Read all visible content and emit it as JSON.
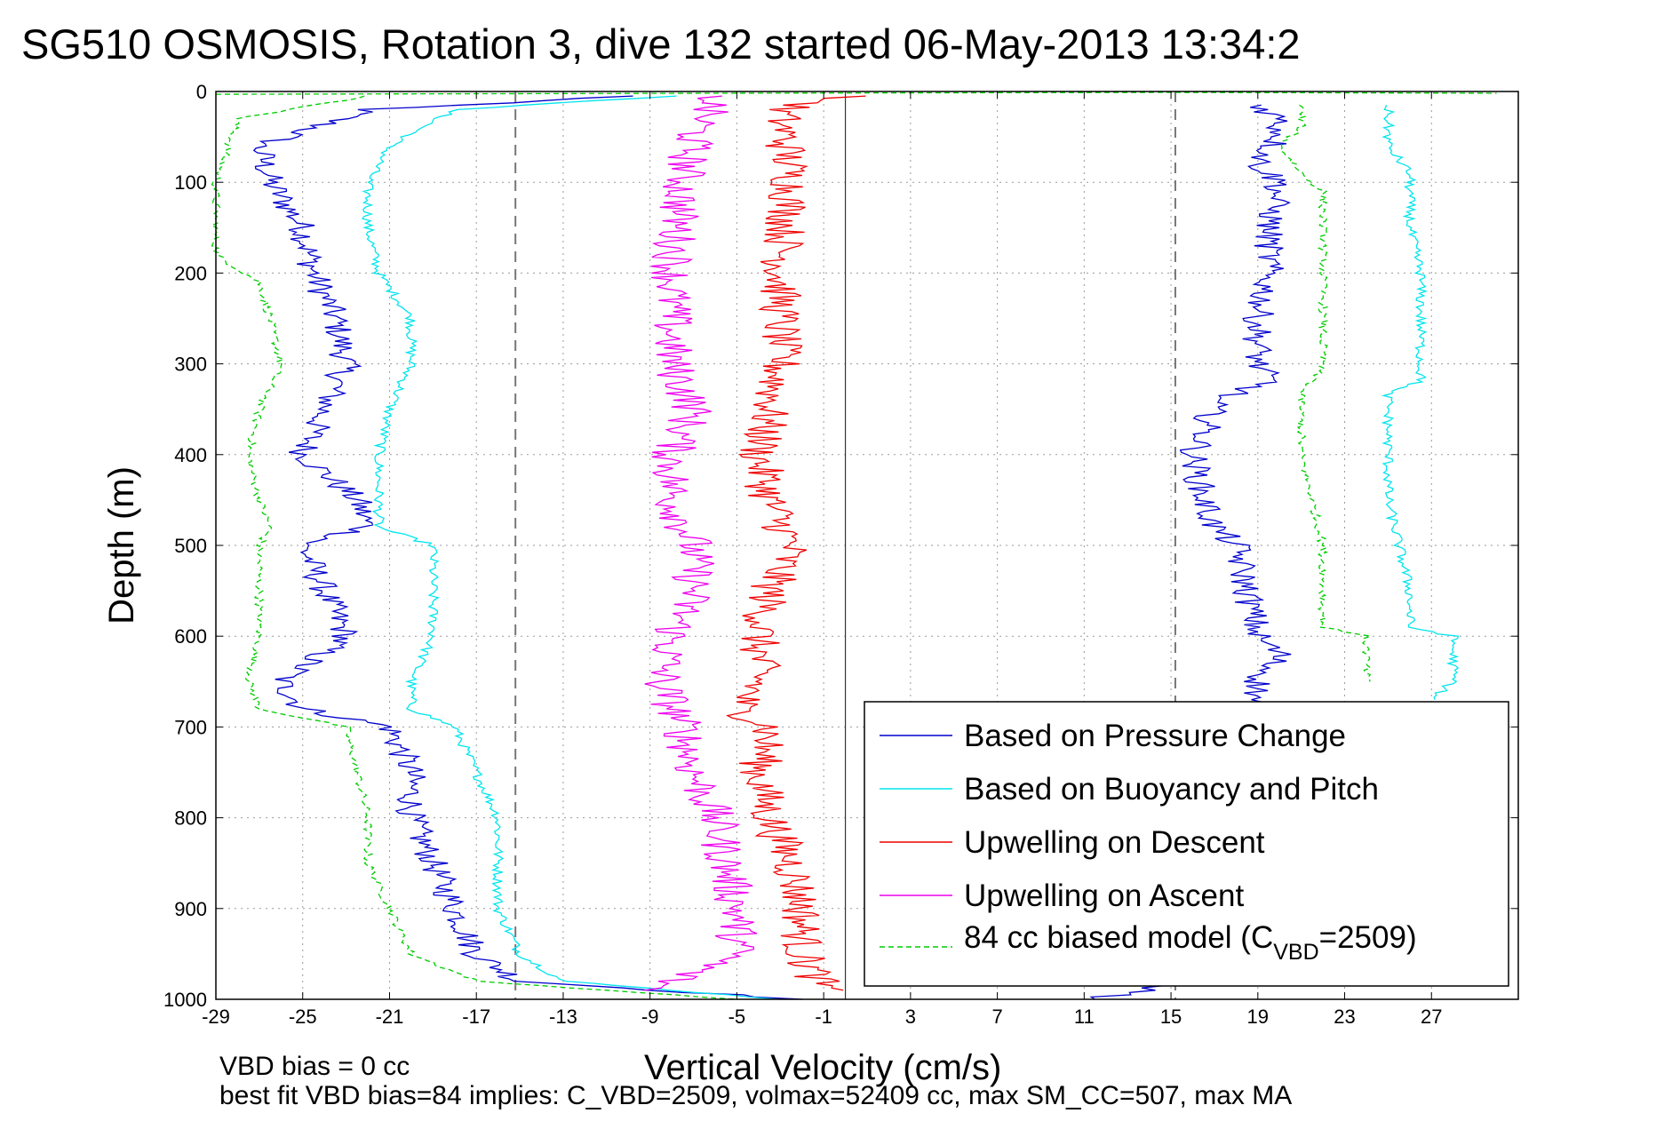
{
  "chart_data": {
    "type": "line",
    "title": "SG510 OSMOSIS, Rotation 3, dive 132 started 06-May-2013 13:34:2",
    "xlabel": "Vertical Velocity (cm/s)",
    "ylabel": "Depth (m)",
    "xlim": [
      -29,
      31
    ],
    "ylim": [
      1000,
      0
    ],
    "y_reversed": true,
    "grid": true,
    "x_ticks": [
      "-29",
      "-25",
      "-21",
      "-17",
      "-13",
      "-9",
      "-5",
      "-1",
      "3",
      "7",
      "11",
      "15",
      "19",
      "23",
      "27"
    ],
    "y_ticks": [
      "0",
      "100",
      "200",
      "300",
      "400",
      "500",
      "600",
      "700",
      "800",
      "900",
      "1000"
    ],
    "reference_lines": [
      {
        "style": "dashed",
        "x": -15.2
      },
      {
        "style": "solid",
        "x": 0
      },
      {
        "style": "dashed",
        "x": 15.2
      }
    ],
    "legend_position": "lower-right",
    "legend": [
      {
        "label": "Based on Pressure Change",
        "color": "#0000cc",
        "dash": "solid"
      },
      {
        "label": "Based on Buoyancy and Pitch",
        "color": "#00e5ee",
        "dash": "solid"
      },
      {
        "label": "Upwelling on Descent",
        "color": "#ee0000",
        "dash": "solid"
      },
      {
        "label": "Upwelling on Ascent",
        "color": "#ee00ee",
        "dash": "solid"
      },
      {
        "label_main": "84 cc biased model (C",
        "label_sub": "VBD",
        "label_end": "=2509)",
        "color": "#00cc00",
        "dash": "dashed"
      }
    ],
    "series": [
      {
        "key": "pressure-descent",
        "color": "#0000cc",
        "dash": "solid",
        "noise": 0.7,
        "points": [
          [
            -10,
            5
          ],
          [
            -22,
            20
          ],
          [
            -27,
            60
          ],
          [
            -26.5,
            100
          ],
          [
            -25,
            150
          ],
          [
            -24.5,
            200
          ],
          [
            -23.5,
            250
          ],
          [
            -23,
            300
          ],
          [
            -24,
            350
          ],
          [
            -25,
            400
          ],
          [
            -22.5,
            450
          ],
          [
            -22,
            480
          ],
          [
            -25,
            500
          ],
          [
            -24,
            550
          ],
          [
            -23,
            600
          ],
          [
            -26,
            650
          ],
          [
            -25,
            680
          ],
          [
            -21,
            700
          ],
          [
            -20,
            750
          ],
          [
            -20,
            800
          ],
          [
            -19,
            850
          ],
          [
            -18,
            900
          ],
          [
            -17,
            950
          ],
          [
            -15,
            980
          ],
          [
            -2,
            1000
          ]
        ]
      },
      {
        "key": "buoyancy-descent",
        "color": "#00e5ee",
        "dash": "solid",
        "noise": 0.25,
        "points": [
          [
            -8,
            5
          ],
          [
            -18,
            20
          ],
          [
            -21,
            60
          ],
          [
            -22,
            100
          ],
          [
            -22,
            150
          ],
          [
            -21.5,
            200
          ],
          [
            -20,
            250
          ],
          [
            -20,
            300
          ],
          [
            -21,
            350
          ],
          [
            -21.5,
            400
          ],
          [
            -21.5,
            480
          ],
          [
            -19,
            500
          ],
          [
            -19,
            550
          ],
          [
            -19,
            600
          ],
          [
            -20,
            650
          ],
          [
            -20,
            680
          ],
          [
            -18,
            700
          ],
          [
            -17,
            750
          ],
          [
            -16,
            800
          ],
          [
            -16,
            850
          ],
          [
            -16,
            900
          ],
          [
            -15,
            950
          ],
          [
            -13,
            980
          ],
          [
            -3,
            1000
          ]
        ]
      },
      {
        "key": "model-descent",
        "color": "#00cc00",
        "dash": "dashed",
        "noise": 0.2,
        "points": [
          [
            -22,
            5
          ],
          [
            -28,
            30
          ],
          [
            -29,
            100
          ],
          [
            -29,
            180
          ],
          [
            -27,
            210
          ],
          [
            -26.5,
            250
          ],
          [
            -26,
            300
          ],
          [
            -27,
            350
          ],
          [
            -27.5,
            400
          ],
          [
            -27,
            450
          ],
          [
            -26.5,
            480
          ],
          [
            -27,
            500
          ],
          [
            -27,
            550
          ],
          [
            -27,
            600
          ],
          [
            -27.5,
            650
          ],
          [
            -27,
            680
          ],
          [
            -23,
            700
          ],
          [
            -22.5,
            750
          ],
          [
            -22,
            800
          ],
          [
            -22,
            850
          ],
          [
            -21,
            900
          ],
          [
            -20,
            950
          ],
          [
            -17,
            980
          ],
          [
            -5,
            1000
          ]
        ]
      },
      {
        "key": "upwelling-descent",
        "color": "#ee0000",
        "dash": "solid",
        "noise": 1.0,
        "points": [
          [
            0,
            5
          ],
          [
            -3,
            20
          ],
          [
            -2.5,
            100
          ],
          [
            -3,
            200
          ],
          [
            -3,
            300
          ],
          [
            -3.5,
            350
          ],
          [
            -4,
            400
          ],
          [
            -3.5,
            450
          ],
          [
            -2.5,
            500
          ],
          [
            -3.5,
            550
          ],
          [
            -4,
            600
          ],
          [
            -4,
            650
          ],
          [
            -5,
            680
          ],
          [
            -3.5,
            700
          ],
          [
            -4,
            750
          ],
          [
            -3.5,
            800
          ],
          [
            -2.5,
            850
          ],
          [
            -2,
            900
          ],
          [
            -2,
            950
          ],
          [
            -1,
            990
          ]
        ]
      },
      {
        "key": "upwelling-ascent",
        "color": "#ee00ee",
        "dash": "solid",
        "noise": 1.0,
        "points": [
          [
            -6,
            5
          ],
          [
            -7,
            50
          ],
          [
            -7.5,
            100
          ],
          [
            -8,
            200
          ],
          [
            -8,
            300
          ],
          [
            -7,
            350
          ],
          [
            -8,
            400
          ],
          [
            -8,
            450
          ],
          [
            -7,
            500
          ],
          [
            -7,
            550
          ],
          [
            -8,
            600
          ],
          [
            -8.5,
            650
          ],
          [
            -7.5,
            700
          ],
          [
            -7,
            750
          ],
          [
            -6,
            800
          ],
          [
            -5.5,
            850
          ],
          [
            -5,
            900
          ],
          [
            -5,
            950
          ],
          [
            -7,
            970
          ],
          [
            -9,
            990
          ]
        ]
      },
      {
        "key": "pressure-ascent",
        "color": "#0000cc",
        "dash": "solid",
        "noise": 0.7,
        "points": [
          [
            19,
            15
          ],
          [
            20,
            30
          ],
          [
            20,
            50
          ],
          [
            19,
            80
          ],
          [
            20,
            100
          ],
          [
            19.5,
            150
          ],
          [
            19.5,
            200
          ],
          [
            19,
            250
          ],
          [
            19,
            300
          ],
          [
            19.5,
            320
          ],
          [
            17,
            340
          ],
          [
            16.5,
            380
          ],
          [
            16,
            400
          ],
          [
            16.5,
            450
          ],
          [
            17,
            480
          ],
          [
            18,
            500
          ],
          [
            18.5,
            550
          ],
          [
            19,
            600
          ],
          [
            20,
            620
          ],
          [
            19,
            650
          ],
          [
            19,
            660
          ],
          [
            14,
            990
          ],
          [
            11,
            1000
          ]
        ]
      },
      {
        "key": "buoyancy-ascent",
        "color": "#00e5ee",
        "dash": "solid",
        "noise": 0.25,
        "points": [
          [
            25,
            15
          ],
          [
            25,
            40
          ],
          [
            25,
            60
          ],
          [
            26,
            90
          ],
          [
            26,
            110
          ],
          [
            26,
            150
          ],
          [
            26.5,
            200
          ],
          [
            26.5,
            250
          ],
          [
            26.5,
            300
          ],
          [
            26.5,
            320
          ],
          [
            25,
            330
          ],
          [
            25,
            400
          ],
          [
            25,
            450
          ],
          [
            25.5,
            500
          ],
          [
            26,
            550
          ],
          [
            26,
            590
          ],
          [
            28,
            600
          ],
          [
            28,
            650
          ],
          [
            27,
            670
          ]
        ]
      },
      {
        "key": "model-ascent",
        "color": "#00cc00",
        "dash": "dashed",
        "noise": 0.2,
        "points": [
          [
            21,
            15
          ],
          [
            21,
            40
          ],
          [
            20,
            60
          ],
          [
            21,
            90
          ],
          [
            22,
            110
          ],
          [
            22,
            200
          ],
          [
            22,
            250
          ],
          [
            22,
            300
          ],
          [
            21.5,
            320
          ],
          [
            21,
            330
          ],
          [
            21,
            400
          ],
          [
            21.5,
            450
          ],
          [
            22,
            500
          ],
          [
            22,
            590
          ],
          [
            24,
            600
          ],
          [
            24,
            650
          ]
        ]
      },
      {
        "key": "surface-segment",
        "color": "#00cc00",
        "dash": "dashed",
        "noise": 0,
        "points": [
          [
            -29,
            3
          ],
          [
            15,
            1
          ],
          [
            30,
            2
          ]
        ]
      }
    ]
  },
  "footer": {
    "line1": "VBD bias = 0 cc",
    "line2": "best fit VBD bias=84 implies: C_VBD=2509, volmax=52409 cc, max SM_CC=507, max MA"
  }
}
